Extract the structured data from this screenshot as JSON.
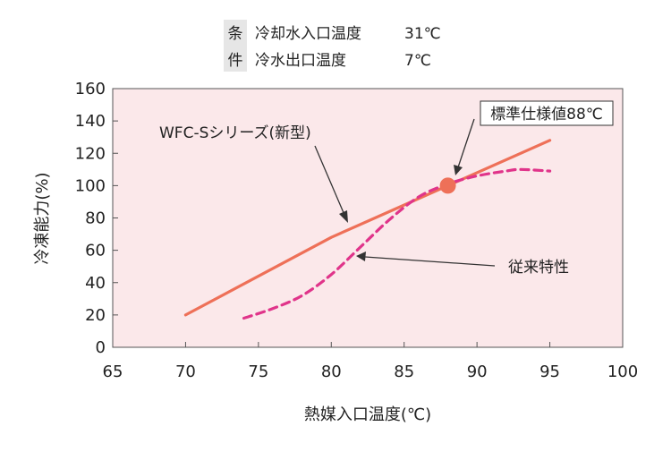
{
  "conditions": {
    "header_top": "条",
    "header_bottom": "件",
    "row1_label": "冷却水入口温度",
    "row1_value": "31℃",
    "row2_label": "冷水出口温度",
    "row2_value": "7℃"
  },
  "chart_data": {
    "type": "line",
    "xlabel": "熱媒入口温度(℃)",
    "ylabel": "冷凍能力(%)",
    "xlim": [
      65,
      100
    ],
    "ylim": [
      0,
      160
    ],
    "x_ticks": [
      65,
      70,
      75,
      80,
      85,
      90,
      95,
      100
    ],
    "y_ticks": [
      0,
      20,
      40,
      60,
      80,
      100,
      120,
      140,
      160
    ],
    "x_tick_labels": [
      "65",
      "70",
      "75",
      "80",
      "85",
      "90",
      "95",
      "100"
    ],
    "y_tick_labels": [
      "0",
      "20",
      "40",
      "60",
      "80",
      "100",
      "120",
      "140",
      "160"
    ],
    "grid": false,
    "background_color": "#fbe8ea",
    "series": [
      {
        "name": "WFC-Sシリーズ(新型)",
        "style": "solid",
        "color": "#ee7058",
        "points": [
          [
            70,
            20
          ],
          [
            80,
            68
          ],
          [
            88,
            100
          ],
          [
            95,
            128
          ]
        ]
      },
      {
        "name": "従来特性",
        "style": "dashed",
        "color": "#e0348a",
        "points": [
          [
            74,
            18
          ],
          [
            76,
            24
          ],
          [
            78,
            32
          ],
          [
            80,
            45
          ],
          [
            82,
            62
          ],
          [
            84,
            79
          ],
          [
            86,
            93
          ],
          [
            88,
            101
          ],
          [
            90,
            106
          ],
          [
            92,
            109
          ],
          [
            93,
            110
          ],
          [
            95,
            109
          ]
        ]
      }
    ],
    "highlight_point": {
      "x": 88,
      "y": 100,
      "color": "#ee7058"
    },
    "annotations": {
      "new_label": "WFC-Sシリーズ(新型)",
      "old_label": "従来特性",
      "standard_label": "標準仕様値88℃"
    }
  }
}
